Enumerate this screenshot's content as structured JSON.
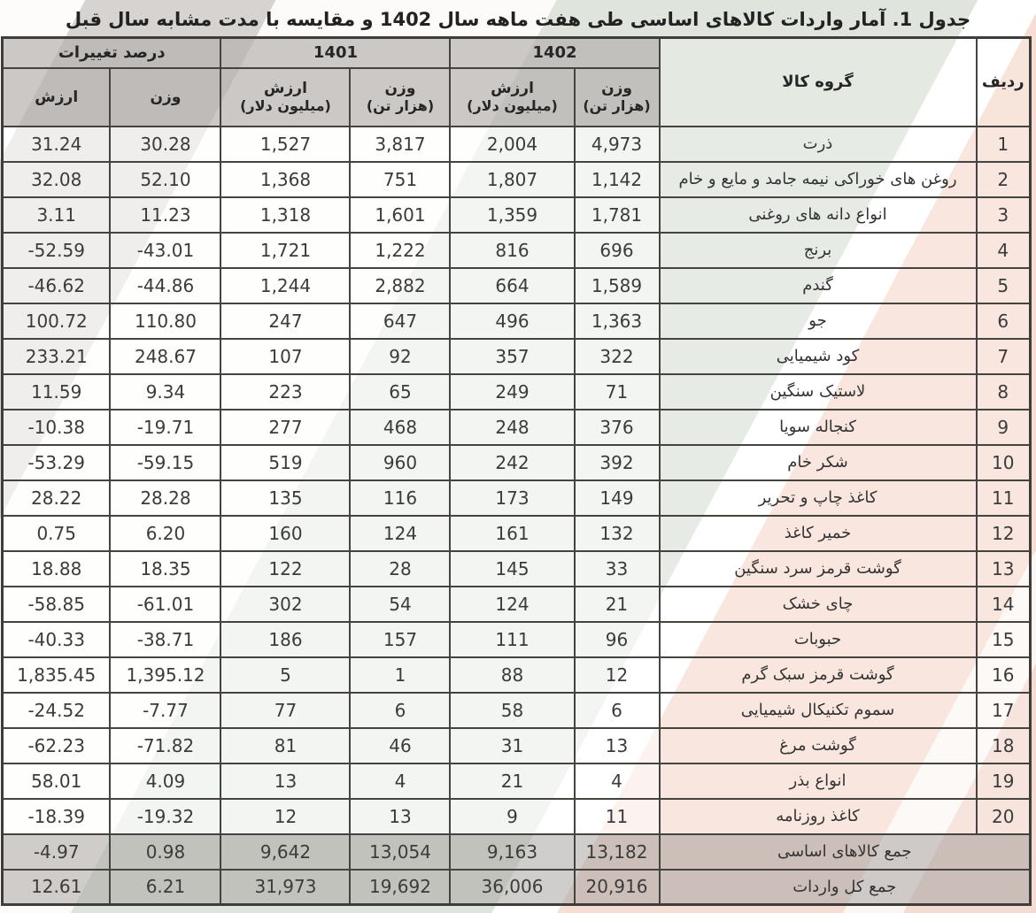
{
  "title": "جدول 1. آمار واردات کالاهای اساسی طی هفت ماهه سال 1402 و مقایسه با مدت مشابه سال قبل",
  "table": {
    "header": {
      "row_label": "ردیف",
      "group_label": "گروه کالا",
      "year_1402": "1402",
      "year_1401": "1401",
      "pct_change_label": "درصد تغییرات",
      "weight_label": "وزن",
      "weight_unit": "(هزار تن)",
      "value_label": "ارزش",
      "value_unit": "(میلیون دلار)",
      "pct_weight_label": "وزن",
      "pct_value_label": "ارزش"
    },
    "rows": [
      {
        "no": "1",
        "name": "ذرت",
        "weight_1402": "4,973",
        "value_1402": "2,004",
        "weight_1401": "3,817",
        "value_1401": "1,527",
        "pct_weight": "30.28",
        "pct_value": "31.24"
      },
      {
        "no": "2",
        "name": "روغن های خوراکی نیمه جامد و مایع و خام",
        "weight_1402": "1,142",
        "value_1402": "1,807",
        "weight_1401": "751",
        "value_1401": "1,368",
        "pct_weight": "52.10",
        "pct_value": "32.08"
      },
      {
        "no": "3",
        "name": "انواع دانه های روغنی",
        "weight_1402": "1,781",
        "value_1402": "1,359",
        "weight_1401": "1,601",
        "value_1401": "1,318",
        "pct_weight": "11.23",
        "pct_value": "3.11"
      },
      {
        "no": "4",
        "name": "برنج",
        "weight_1402": "696",
        "value_1402": "816",
        "weight_1401": "1,222",
        "value_1401": "1,721",
        "pct_weight": "-43.01",
        "pct_value": "-52.59"
      },
      {
        "no": "5",
        "name": "گندم",
        "weight_1402": "1,589",
        "value_1402": "664",
        "weight_1401": "2,882",
        "value_1401": "1,244",
        "pct_weight": "-44.86",
        "pct_value": "-46.62"
      },
      {
        "no": "6",
        "name": "جو",
        "weight_1402": "1,363",
        "value_1402": "496",
        "weight_1401": "647",
        "value_1401": "247",
        "pct_weight": "110.80",
        "pct_value": "100.72"
      },
      {
        "no": "7",
        "name": "کود شیمیایی",
        "weight_1402": "322",
        "value_1402": "357",
        "weight_1401": "92",
        "value_1401": "107",
        "pct_weight": "248.67",
        "pct_value": "233.21"
      },
      {
        "no": "8",
        "name": "لاستیک سنگین",
        "weight_1402": "71",
        "value_1402": "249",
        "weight_1401": "65",
        "value_1401": "223",
        "pct_weight": "9.34",
        "pct_value": "11.59"
      },
      {
        "no": "9",
        "name": "کنجاله سویا",
        "weight_1402": "376",
        "value_1402": "248",
        "weight_1401": "468",
        "value_1401": "277",
        "pct_weight": "-19.71",
        "pct_value": "-10.38"
      },
      {
        "no": "10",
        "name": "شکر خام",
        "weight_1402": "392",
        "value_1402": "242",
        "weight_1401": "960",
        "value_1401": "519",
        "pct_weight": "-59.15",
        "pct_value": "-53.29"
      },
      {
        "no": "11",
        "name": "کاغذ چاپ و تحریر",
        "weight_1402": "149",
        "value_1402": "173",
        "weight_1401": "116",
        "value_1401": "135",
        "pct_weight": "28.28",
        "pct_value": "28.22"
      },
      {
        "no": "12",
        "name": "خمیر کاغذ",
        "weight_1402": "132",
        "value_1402": "161",
        "weight_1401": "124",
        "value_1401": "160",
        "pct_weight": "6.20",
        "pct_value": "0.75"
      },
      {
        "no": "13",
        "name": "گوشت قرمز سرد سنگین",
        "weight_1402": "33",
        "value_1402": "145",
        "weight_1401": "28",
        "value_1401": "122",
        "pct_weight": "18.35",
        "pct_value": "18.88"
      },
      {
        "no": "14",
        "name": "چای خشک",
        "weight_1402": "21",
        "value_1402": "124",
        "weight_1401": "54",
        "value_1401": "302",
        "pct_weight": "-61.01",
        "pct_value": "-58.85"
      },
      {
        "no": "15",
        "name": "حبوبات",
        "weight_1402": "96",
        "value_1402": "111",
        "weight_1401": "157",
        "value_1401": "186",
        "pct_weight": "-38.71",
        "pct_value": "-40.33"
      },
      {
        "no": "16",
        "name": "گوشت قرمز سبک گرم",
        "weight_1402": "12",
        "value_1402": "88",
        "weight_1401": "1",
        "value_1401": "5",
        "pct_weight": "1,395.12",
        "pct_value": "1,835.45"
      },
      {
        "no": "17",
        "name": "سموم تکنیکال شیمیایی",
        "weight_1402": "6",
        "value_1402": "58",
        "weight_1401": "6",
        "value_1401": "77",
        "pct_weight": "-7.77",
        "pct_value": "-24.52"
      },
      {
        "no": "18",
        "name": "گوشت مرغ",
        "weight_1402": "13",
        "value_1402": "31",
        "weight_1401": "46",
        "value_1401": "81",
        "pct_weight": "-71.82",
        "pct_value": "-62.23"
      },
      {
        "no": "19",
        "name": "انواع بذر",
        "weight_1402": "4",
        "value_1402": "21",
        "weight_1401": "4",
        "value_1401": "13",
        "pct_weight": "4.09",
        "pct_value": "58.01"
      },
      {
        "no": "20",
        "name": "کاغذ روزنامه",
        "weight_1402": "11",
        "value_1402": "9",
        "weight_1401": "13",
        "value_1401": "12",
        "pct_weight": "-19.32",
        "pct_value": "-18.39"
      }
    ],
    "totals": [
      {
        "name": "جمع کالاهای اساسی",
        "weight_1402": "13,182",
        "value_1402": "9,163",
        "weight_1401": "13,054",
        "value_1401": "9,642",
        "pct_weight": "0.98",
        "pct_value": "-4.97"
      },
      {
        "name": "جمع کل واردات",
        "weight_1402": "20,916",
        "value_1402": "36,006",
        "weight_1401": "19,692",
        "value_1401": "31,973",
        "pct_weight": "6.21",
        "pct_value": "12.61"
      }
    ]
  },
  "colors": {
    "stripe_green": "#dfe4dc",
    "stripe_pink": "#f6ded4",
    "stripe_gray": "#d6d3d0",
    "header_gray": "#ccc9c6",
    "border": "#454340",
    "text": "#333333"
  }
}
